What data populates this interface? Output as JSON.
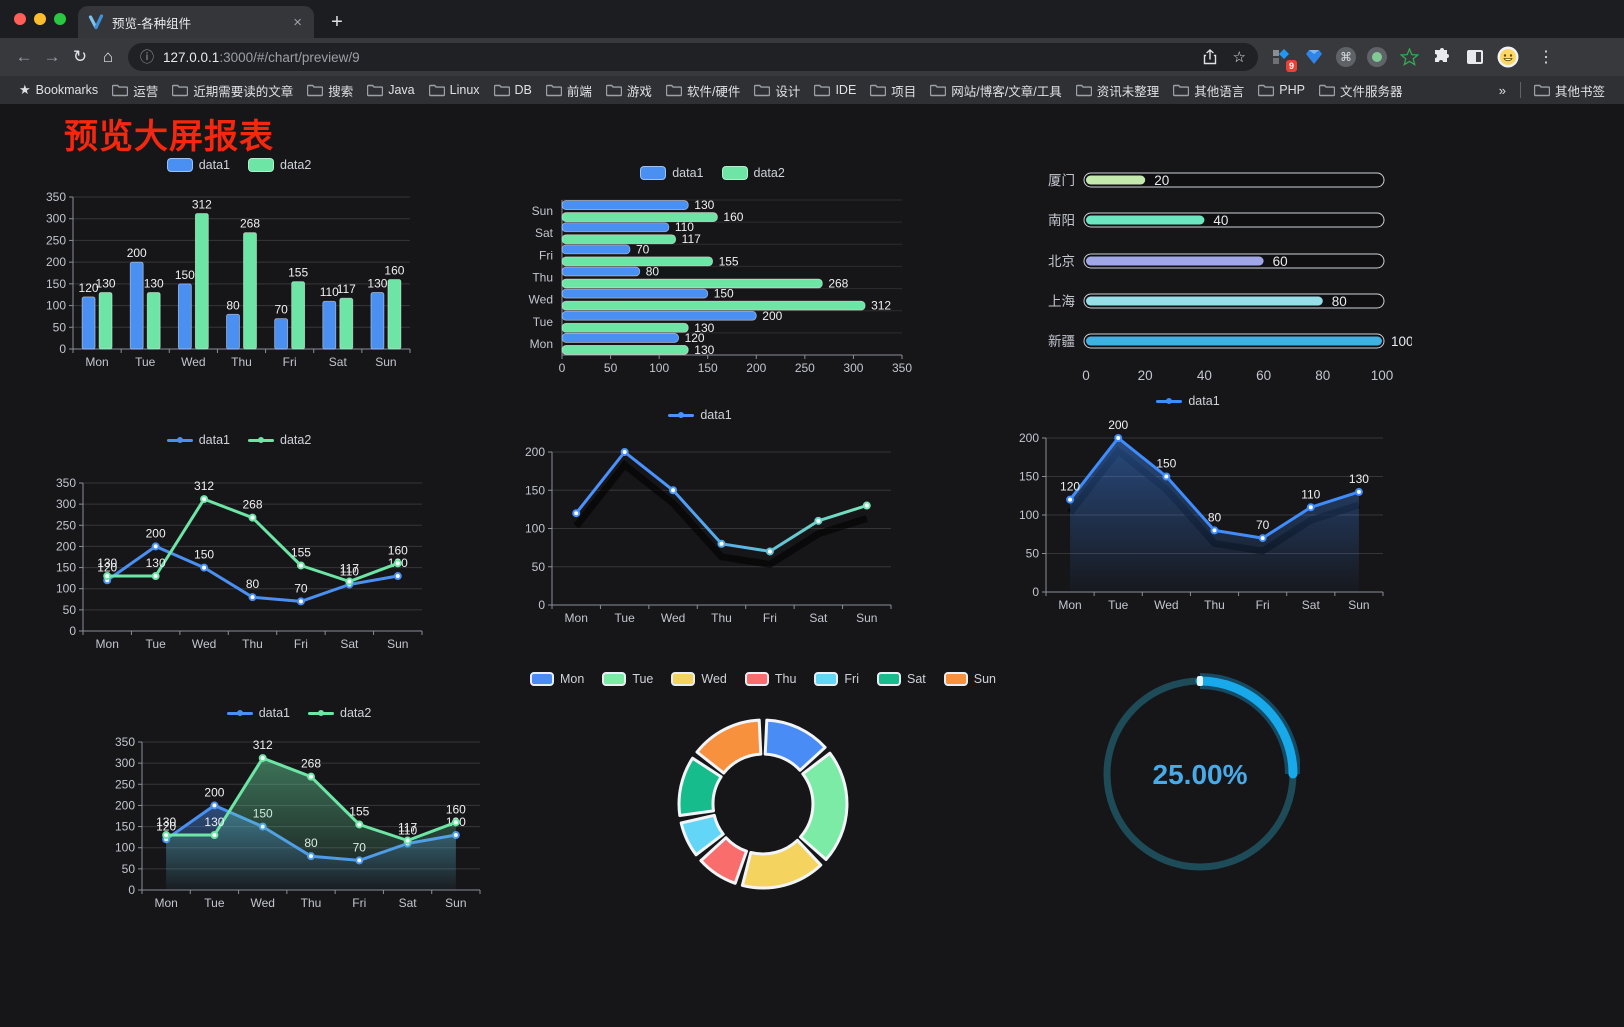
{
  "browser": {
    "tab": {
      "title": "预览-各种组件"
    },
    "new_tab_icon": "+",
    "close_tab_icon": "×",
    "url": {
      "host": "127.0.0.1",
      "rest": ":3000/#/chart/preview/9"
    },
    "bookmarks_root_label": "Bookmarks",
    "bookmarks": [
      "运营",
      "近期需要读的文章",
      "搜索",
      "Java",
      "Linux",
      "DB",
      "前端",
      "游戏",
      "软件/硬件",
      "设计",
      "IDE",
      "项目",
      "网站/博客/文章/工具",
      "资讯未整理",
      "其他语言",
      "PHP",
      "文件服务器"
    ],
    "bookmarks_overflow_icon": "»",
    "other_bookmarks_label": "其他书签",
    "extension_badge": "9"
  },
  "icons": {
    "back": "←",
    "forward": "→",
    "reload": "↻",
    "home": "⌂",
    "info": "ⓘ",
    "star": "☆",
    "bookmarks_star": "★",
    "kebab": "⋮",
    "cmd": "⌘"
  },
  "page": {
    "title": "预览大屏报表",
    "title_color": "#f5270e",
    "background": "#161619"
  },
  "chart_data": [
    {
      "id": "grouped-bar",
      "type": "bar",
      "categories": [
        "Mon",
        "Tue",
        "Wed",
        "Thu",
        "Fri",
        "Sat",
        "Sun"
      ],
      "series": [
        {
          "name": "data1",
          "color": "#4a90f2",
          "values": [
            120,
            200,
            150,
            80,
            70,
            110,
            130
          ]
        },
        {
          "name": "data2",
          "color": "#6ce5a5",
          "values": [
            130,
            130,
            312,
            268,
            155,
            117,
            160
          ]
        }
      ],
      "ylim": [
        0,
        350
      ],
      "ytick_step": 50,
      "value_labels": true,
      "legend_position": "top"
    },
    {
      "id": "grouped-horizontal-bar",
      "type": "hbar",
      "categories": [
        "Mon",
        "Tue",
        "Wed",
        "Thu",
        "Fri",
        "Sat",
        "Sun"
      ],
      "display_top_to_bottom": [
        "Sun",
        "Sat",
        "Fri",
        "Thu",
        "Wed",
        "Tue",
        "Mon"
      ],
      "series": [
        {
          "name": "data1",
          "color": "#4a90f2",
          "values": [
            120,
            200,
            150,
            80,
            70,
            110,
            130
          ]
        },
        {
          "name": "data2",
          "color": "#6ce5a5",
          "values": [
            130,
            130,
            312,
            268,
            155,
            117,
            160
          ]
        }
      ],
      "xlim": [
        0,
        350
      ],
      "xtick_step": 50,
      "value_labels": true,
      "legend_position": "top"
    },
    {
      "id": "city-progress-bars",
      "type": "progress",
      "items": [
        {
          "label": "厦门",
          "value": 20,
          "color": "#c4ebad"
        },
        {
          "label": "南阳",
          "value": 40,
          "color": "#6be6c1"
        },
        {
          "label": "北京",
          "value": 60,
          "color": "#a0a7e6"
        },
        {
          "label": "上海",
          "value": 80,
          "color": "#96dee8"
        },
        {
          "label": "新疆",
          "value": 100,
          "color": "#3fb1e3"
        }
      ],
      "xlim": [
        0,
        100
      ],
      "xticks": [
        0,
        20,
        40,
        60,
        80,
        100
      ]
    },
    {
      "id": "two-series-line",
      "type": "line",
      "categories": [
        "Mon",
        "Tue",
        "Wed",
        "Thu",
        "Fri",
        "Sat",
        "Sun"
      ],
      "series": [
        {
          "name": "data1",
          "color": "#4a90f2",
          "values": [
            120,
            200,
            150,
            80,
            70,
            110,
            130
          ]
        },
        {
          "name": "data2",
          "color": "#6ce5a5",
          "values": [
            130,
            130,
            312,
            268,
            155,
            117,
            160
          ]
        }
      ],
      "ylim": [
        0,
        350
      ],
      "ytick_step": 50,
      "value_labels": true,
      "legend_position": "top"
    },
    {
      "id": "gradient-line",
      "type": "line",
      "categories": [
        "Mon",
        "Tue",
        "Wed",
        "Thu",
        "Fri",
        "Sat",
        "Sun"
      ],
      "series": [
        {
          "name": "data1",
          "color": "#4992ff",
          "gradient": [
            "#4992ff",
            "#7cf0b0"
          ],
          "values": [
            120,
            200,
            150,
            80,
            70,
            110,
            130
          ]
        }
      ],
      "ylim": [
        0,
        200
      ],
      "ytick_step": 50,
      "value_labels": false,
      "shadow": true,
      "legend_position": "top"
    },
    {
      "id": "blue-area-line",
      "type": "line",
      "categories": [
        "Mon",
        "Tue",
        "Wed",
        "Thu",
        "Fri",
        "Sat",
        "Sun"
      ],
      "series": [
        {
          "name": "data1",
          "color": "#3f8cfd",
          "area": true,
          "values": [
            120,
            200,
            150,
            80,
            70,
            110,
            130
          ]
        }
      ],
      "ylim": [
        0,
        200
      ],
      "ytick_step": 50,
      "value_labels": true,
      "shadow": true,
      "legend_position": "top"
    },
    {
      "id": "two-series-area-line",
      "type": "line",
      "categories": [
        "Mon",
        "Tue",
        "Wed",
        "Thu",
        "Fri",
        "Sat",
        "Sun"
      ],
      "series": [
        {
          "name": "data1",
          "color": "#4a90f2",
          "area": true,
          "values": [
            120,
            200,
            150,
            80,
            70,
            110,
            130
          ]
        },
        {
          "name": "data2",
          "color": "#6ce5a5",
          "area": true,
          "values": [
            130,
            130,
            312,
            268,
            155,
            117,
            160
          ]
        }
      ],
      "ylim": [
        0,
        350
      ],
      "ytick_step": 50,
      "value_labels": true,
      "legend_position": "top"
    },
    {
      "id": "donut-pie",
      "type": "pie",
      "categories": [
        "Mon",
        "Tue",
        "Wed",
        "Thu",
        "Fri",
        "Sat",
        "Sun"
      ],
      "values": [
        120,
        200,
        150,
        80,
        70,
        110,
        130
      ],
      "colors": [
        "#4a8cf5",
        "#7ceba6",
        "#f5d35f",
        "#fa6d6d",
        "#63d5f7",
        "#16bc8c",
        "#f7913e"
      ],
      "legend_position": "top"
    },
    {
      "id": "gauge-progress",
      "type": "gauge",
      "value": 25,
      "display": "25.00%",
      "progress_color": "#17a9e9",
      "track_color": "#1d4b57",
      "text_color": "#47abe9"
    }
  ]
}
